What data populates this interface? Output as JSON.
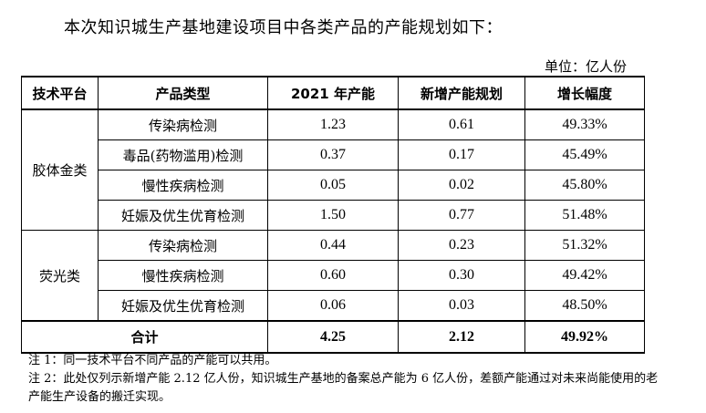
{
  "intro": "本次知识城生产基地建设项目中各类产品的产能规划如下：",
  "unit": "单位：亿人份",
  "table": {
    "headers": [
      "技术平台",
      "产品类型",
      "2021 年产能",
      "新增产能规划",
      "增长幅度"
    ],
    "groups": [
      {
        "platform": "胶体金类",
        "rows": [
          {
            "product": "传染病检测",
            "capacity_2021": "1.23",
            "new_capacity": "0.61",
            "growth": "49.33%"
          },
          {
            "product": "毒品(药物滥用)检测",
            "capacity_2021": "0.37",
            "new_capacity": "0.17",
            "growth": "45.49%"
          },
          {
            "product": "慢性疾病检测",
            "capacity_2021": "0.05",
            "new_capacity": "0.02",
            "growth": "45.80%"
          },
          {
            "product": "妊娠及优生优育检测",
            "capacity_2021": "1.50",
            "new_capacity": "0.77",
            "growth": "51.48%"
          }
        ]
      },
      {
        "platform": "荧光类",
        "rows": [
          {
            "product": "传染病检测",
            "capacity_2021": "0.44",
            "new_capacity": "0.23",
            "growth": "51.32%"
          },
          {
            "product": "慢性疾病检测",
            "capacity_2021": "0.60",
            "new_capacity": "0.30",
            "growth": "49.42%"
          },
          {
            "product": "妊娠及优生优育检测",
            "capacity_2021": "0.06",
            "new_capacity": "0.03",
            "growth": "48.50%"
          }
        ]
      }
    ],
    "total": {
      "label": "合计",
      "capacity_2021": "4.25",
      "new_capacity": "2.12",
      "growth": "49.92%"
    }
  },
  "notes": [
    "注 1：同一技术平台不同产品的产能可以共用。",
    "注 2：此处仅列示新增产能 2.12 亿人份，知识城生产基地的备案总产能为 6 亿人份，差额产能通过对未来尚能使用的老产能生产设备的搬迁实现。"
  ]
}
